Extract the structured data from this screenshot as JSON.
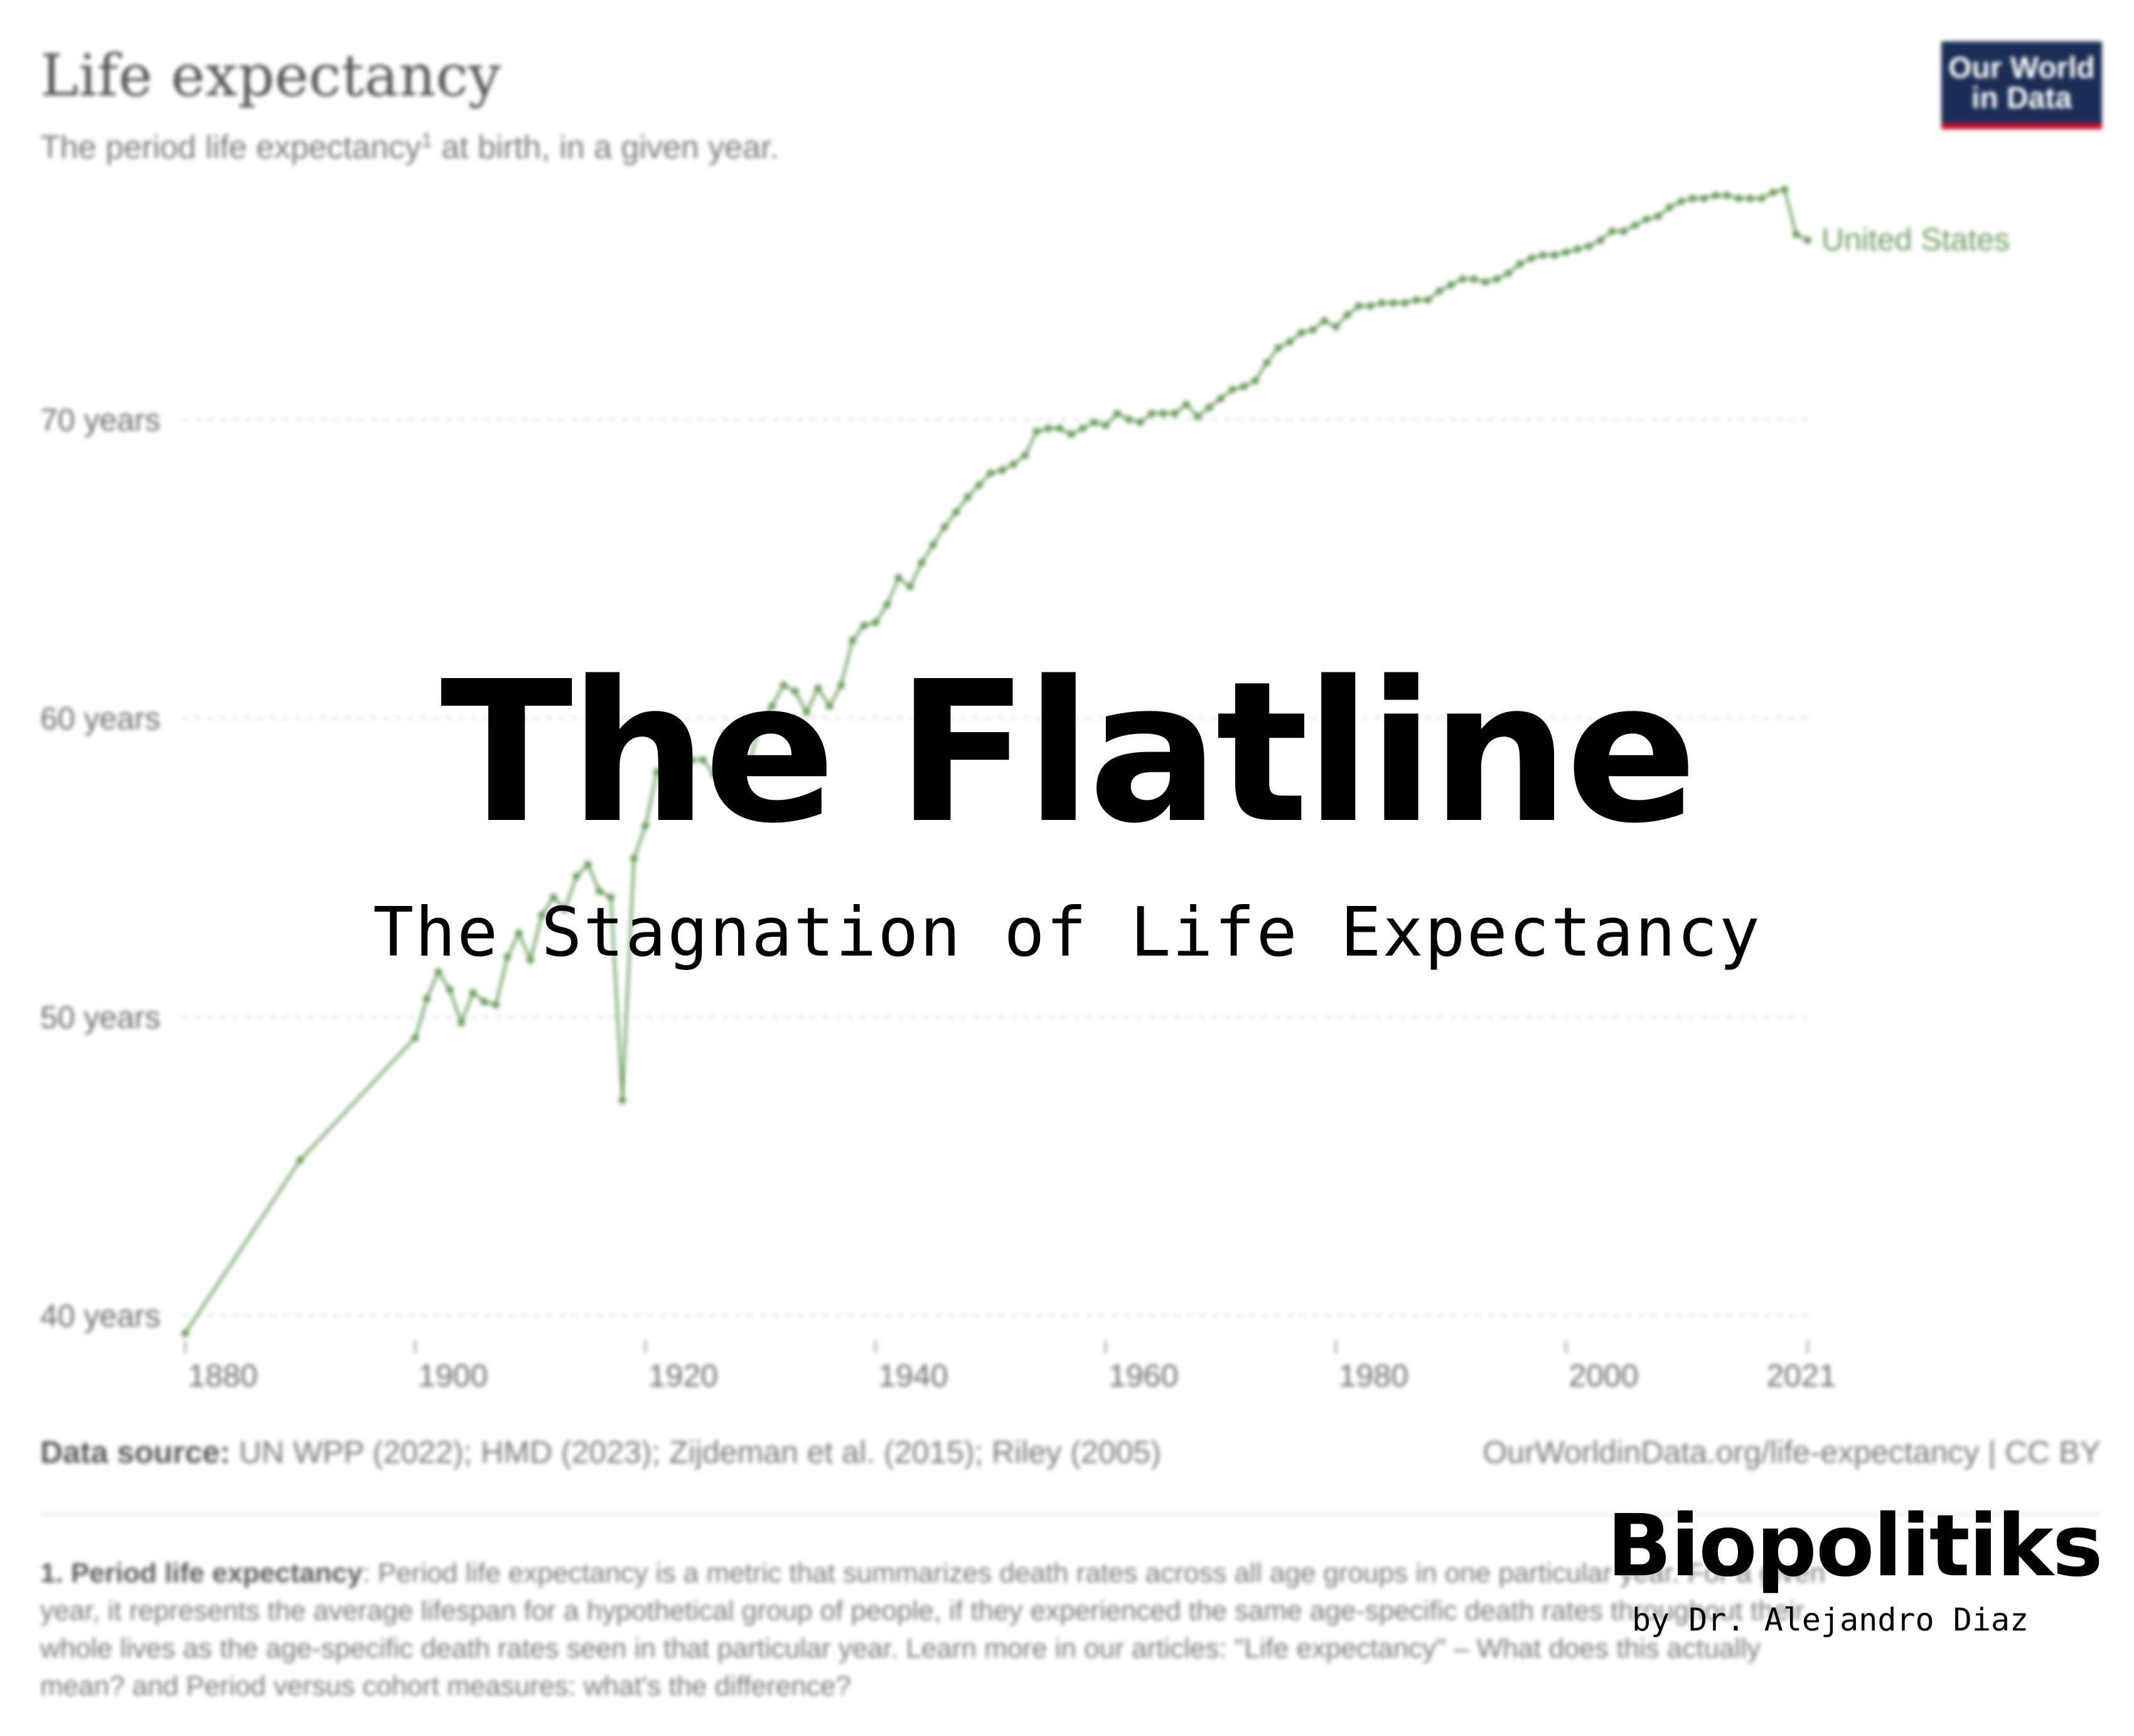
{
  "header": {
    "title": "Life expectancy",
    "subtitle_before": "The period life expectancy",
    "subtitle_sup": "1",
    "subtitle_after": " at birth, in a given year.",
    "logo_line1": "Our World",
    "logo_line2": "in Data"
  },
  "colors": {
    "series": "#6b9e5e",
    "logo_bg": "#1a2e55",
    "logo_stripe": "#c8102e"
  },
  "chart_data": {
    "type": "line",
    "title": "Life expectancy",
    "ylim": [
      39.5,
      77.5
    ],
    "xlim": [
      1880,
      2021
    ],
    "x_ticks": [
      1880,
      1900,
      1920,
      1940,
      1960,
      1980,
      2000,
      2021
    ],
    "x_tick_labels": [
      "1880",
      "1900",
      "1920",
      "1940",
      "1960",
      "1980",
      "2000",
      "2021"
    ],
    "y_ticks": [
      40,
      50,
      60,
      70
    ],
    "y_tick_labels": [
      "40 years",
      "50 years",
      "60 years",
      "70 years"
    ],
    "grid": true,
    "series": [
      {
        "name": "United States",
        "x": [
          1880,
          1890,
          1900,
          1901,
          1902,
          1903,
          1904,
          1905,
          1906,
          1907,
          1908,
          1909,
          1910,
          1911,
          1912,
          1913,
          1914,
          1915,
          1916,
          1917,
          1918,
          1919,
          1920,
          1921,
          1922,
          1923,
          1924,
          1925,
          1926,
          1927,
          1928,
          1929,
          1930,
          1931,
          1932,
          1933,
          1934,
          1935,
          1936,
          1937,
          1938,
          1939,
          1940,
          1941,
          1942,
          1943,
          1944,
          1945,
          1946,
          1947,
          1948,
          1949,
          1950,
          1951,
          1952,
          1953,
          1954,
          1955,
          1956,
          1957,
          1958,
          1959,
          1960,
          1961,
          1962,
          1963,
          1964,
          1965,
          1966,
          1967,
          1968,
          1969,
          1970,
          1971,
          1972,
          1973,
          1974,
          1975,
          1976,
          1977,
          1978,
          1979,
          1980,
          1981,
          1982,
          1983,
          1984,
          1985,
          1986,
          1987,
          1988,
          1989,
          1990,
          1991,
          1992,
          1993,
          1994,
          1995,
          1996,
          1997,
          1998,
          1999,
          2000,
          2001,
          2002,
          2003,
          2004,
          2005,
          2006,
          2007,
          2008,
          2009,
          2010,
          2011,
          2012,
          2013,
          2014,
          2015,
          2016,
          2017,
          2018,
          2019,
          2020,
          2021
        ],
        "values": [
          39.4,
          45.2,
          49.3,
          50.6,
          51.5,
          50.9,
          49.8,
          50.8,
          50.5,
          50.4,
          52.0,
          52.8,
          51.9,
          53.4,
          54.0,
          53.6,
          54.7,
          55.1,
          54.2,
          54.0,
          47.2,
          55.3,
          56.4,
          58.2,
          58.1,
          57.6,
          58.6,
          58.6,
          58.1,
          59.5,
          58.4,
          58.5,
          59.8,
          60.4,
          61.1,
          60.9,
          60.2,
          61.0,
          60.4,
          61.1,
          62.6,
          63.1,
          63.2,
          63.8,
          64.7,
          64.4,
          65.2,
          65.8,
          66.4,
          66.9,
          67.4,
          67.8,
          68.2,
          68.3,
          68.5,
          68.8,
          69.6,
          69.7,
          69.7,
          69.5,
          69.7,
          69.9,
          69.8,
          70.2,
          70.0,
          69.9,
          70.2,
          70.2,
          70.2,
          70.5,
          70.1,
          70.4,
          70.7,
          71.0,
          71.1,
          71.3,
          71.9,
          72.4,
          72.6,
          72.9,
          73.0,
          73.3,
          73.1,
          73.5,
          73.8,
          73.8,
          73.9,
          73.9,
          73.9,
          74.0,
          74.0,
          74.3,
          74.5,
          74.7,
          74.7,
          74.6,
          74.7,
          74.9,
          75.2,
          75.4,
          75.5,
          75.5,
          75.6,
          75.7,
          75.8,
          76.0,
          76.3,
          76.3,
          76.5,
          76.7,
          76.8,
          77.1,
          77.3,
          77.4,
          77.4,
          77.5,
          77.5,
          77.4,
          77.4,
          77.4,
          77.6,
          77.7,
          76.2,
          76.0
        ]
      }
    ]
  },
  "footer": {
    "source_label": "Data source:",
    "source_text": " UN WPP (2022); HMD (2023); Zijdeman et al. (2015); Riley (2005)",
    "url_text": "OurWorldinData.org/life-expectancy | CC BY",
    "note_label": "1. Period life expectancy",
    "note_lines": [
      ": Period life expectancy is a metric that summarizes death rates across all age groups in one particular year. For a given",
      "year, it represents the average lifespan for a hypothetical group of people, if they experienced the same age-specific death rates throughout their",
      "whole lives as the age-specific death rates seen in that particular year. Learn more in our articles: \"Life expectancy\" – What does this actually",
      "mean? and Period versus cohort measures: what's the difference?"
    ]
  },
  "overlay": {
    "headline": "The Flatline",
    "subheadline": "The Stagnation of Life Expectancy",
    "brand": "Biopolitiks",
    "byline": "by Dr. Alejandro Diaz"
  }
}
